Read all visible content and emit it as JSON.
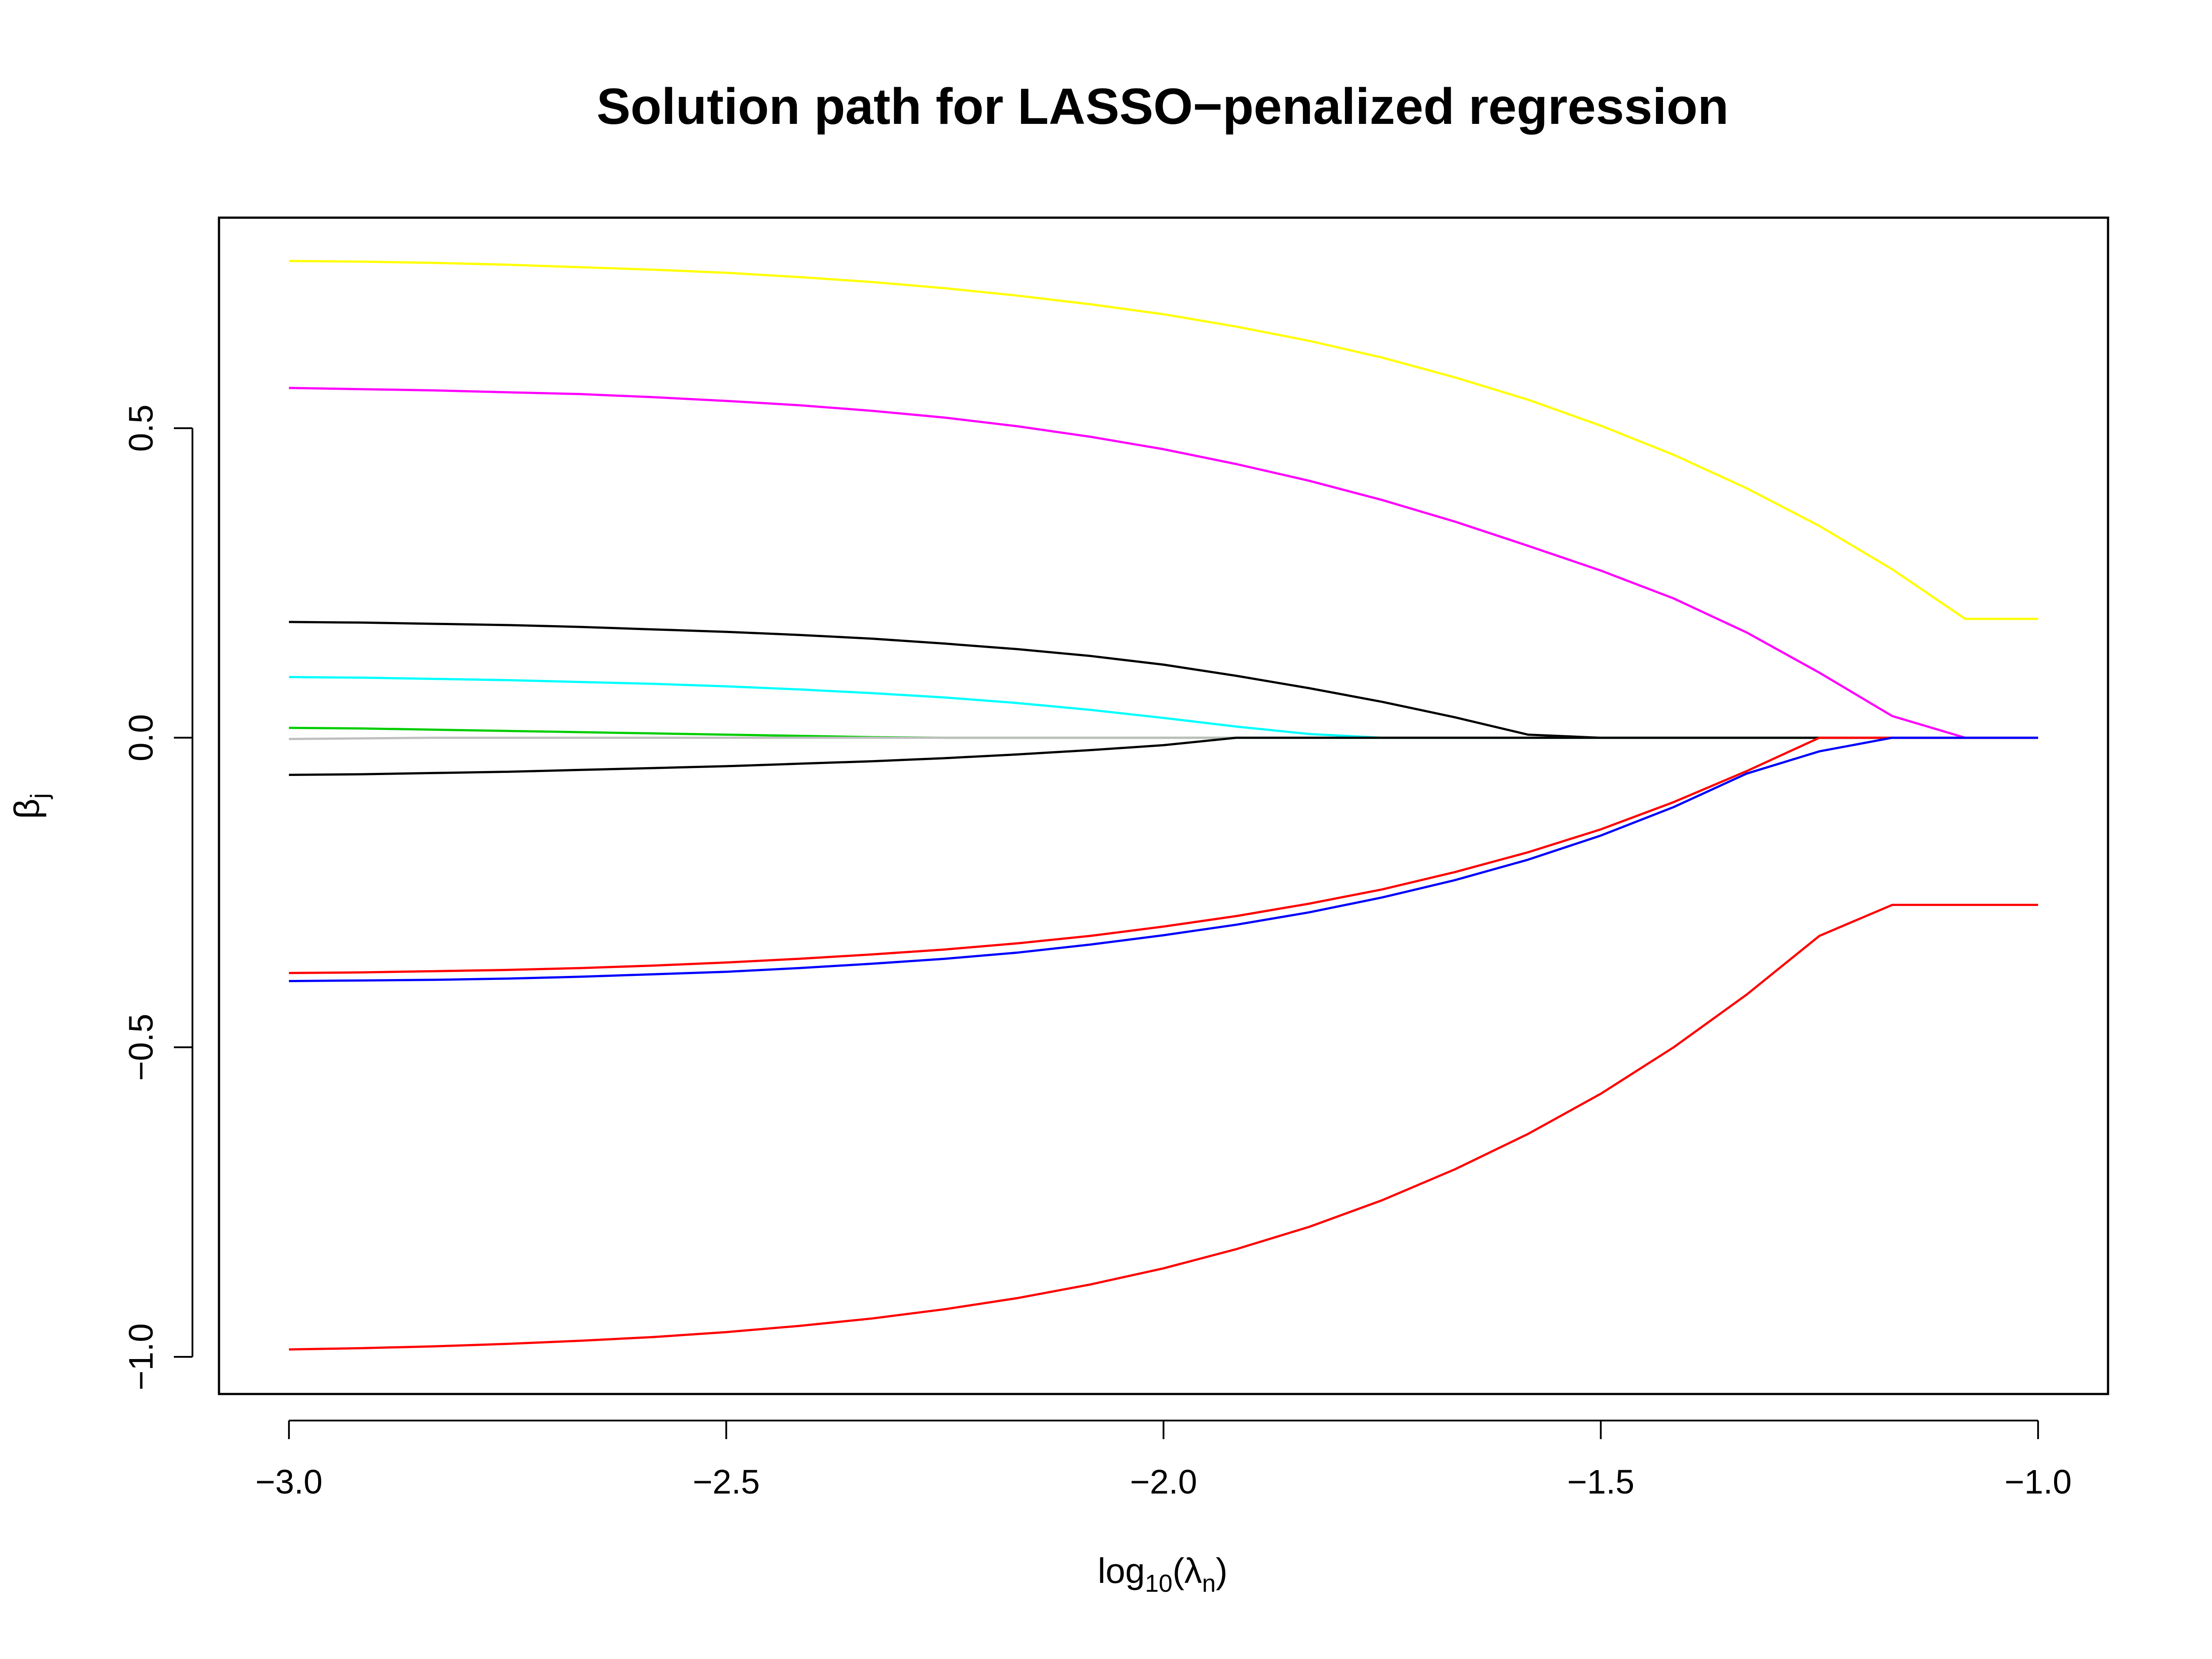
{
  "chart_data": {
    "type": "line",
    "title": "Solution path for LASSO−penalized regression",
    "xlabel": {
      "pre": "log",
      "sub": "10",
      "mid": "(λ",
      "sub2": "n",
      "post": ")"
    },
    "ylabel": {
      "main": "β",
      "sub": "j"
    },
    "xlim": [
      -3.08,
      -0.92
    ],
    "ylim": [
      -1.06,
      0.84
    ],
    "xticks": [
      -3.0,
      -2.5,
      -2.0,
      -1.5,
      -1.0
    ],
    "xtick_labels": [
      "−3.0",
      "−2.5",
      "−2.0",
      "−1.5",
      "−1.0"
    ],
    "yticks": [
      -1.0,
      -0.5,
      0.0,
      0.5
    ],
    "ytick_labels": [
      "−1.0",
      "−0.5",
      "0.0",
      "0.5"
    ],
    "grid": false,
    "legend": "none",
    "x": [
      -3.0,
      -2.9167,
      -2.8333,
      -2.75,
      -2.6667,
      -2.5833,
      -2.5,
      -2.4167,
      -2.3333,
      -2.25,
      -2.1667,
      -2.0833,
      -2.0,
      -1.9167,
      -1.8333,
      -1.75,
      -1.6667,
      -1.5833,
      -1.5,
      -1.4167,
      -1.3333,
      -1.25,
      -1.1667,
      -1.0833,
      -1.0
    ],
    "series": [
      {
        "color": "#FFFF00",
        "values": [
          0.77,
          0.769,
          0.767,
          0.764,
          0.76,
          0.756,
          0.751,
          0.744,
          0.736,
          0.726,
          0.714,
          0.7,
          0.684,
          0.664,
          0.641,
          0.614,
          0.582,
          0.546,
          0.504,
          0.457,
          0.403,
          0.342,
          0.272,
          0.192,
          0.192
        ]
      },
      {
        "color": "#FF00FF",
        "values": [
          0.565,
          0.563,
          0.561,
          0.558,
          0.555,
          0.55,
          0.544,
          0.537,
          0.528,
          0.517,
          0.503,
          0.486,
          0.466,
          0.442,
          0.415,
          0.384,
          0.349,
          0.31,
          0.27,
          0.225,
          0.17,
          0.105,
          0.035,
          0.0,
          0.0
        ]
      },
      {
        "color": "#000000",
        "values": [
          0.187,
          0.186,
          0.184,
          0.182,
          0.179,
          0.175,
          0.171,
          0.166,
          0.16,
          0.152,
          0.143,
          0.132,
          0.118,
          0.1,
          0.08,
          0.058,
          0.033,
          0.005,
          0.0,
          0.0,
          0.0,
          0.0,
          0.0,
          0.0,
          0.0
        ]
      },
      {
        "color": "#00FFFF",
        "values": [
          0.098,
          0.097,
          0.095,
          0.093,
          0.09,
          0.087,
          0.083,
          0.078,
          0.072,
          0.065,
          0.056,
          0.045,
          0.032,
          0.018,
          0.006,
          0.0,
          0.0,
          0.0,
          0.0,
          0.0,
          0.0,
          0.0,
          0.0,
          0.0,
          0.0
        ]
      },
      {
        "color": "#00CD00",
        "values": [
          0.016,
          0.015,
          0.013,
          0.011,
          0.009,
          0.007,
          0.005,
          0.003,
          0.001,
          0.0,
          0.0,
          0.0,
          0.0,
          0.0,
          0.0,
          0.0,
          0.0,
          0.0,
          0.0,
          0.0,
          0.0,
          0.0,
          0.0,
          0.0,
          0.0
        ]
      },
      {
        "color": "#BEBEBE",
        "values": [
          -0.002,
          -0.001,
          0.0,
          0.0,
          0.0,
          0.0,
          0.0,
          0.0,
          0.0,
          0.0,
          0.0,
          0.0,
          0.0,
          0.0,
          0.0,
          0.0,
          0.0,
          0.0,
          0.0,
          0.0,
          0.0,
          0.0,
          0.0,
          0.0,
          0.0
        ]
      },
      {
        "color": "#000000",
        "values": [
          -0.06,
          -0.059,
          -0.057,
          -0.055,
          -0.052,
          -0.049,
          -0.046,
          -0.042,
          -0.038,
          -0.033,
          -0.027,
          -0.02,
          -0.012,
          0.0,
          0.0,
          0.0,
          0.0,
          0.0,
          0.0,
          0.0,
          0.0,
          0.0,
          0.0,
          0.0,
          0.0
        ]
      },
      {
        "color": "#FF0000",
        "values": [
          -0.38,
          -0.379,
          -0.377,
          -0.375,
          -0.372,
          -0.368,
          -0.363,
          -0.357,
          -0.35,
          -0.342,
          -0.332,
          -0.32,
          -0.305,
          -0.288,
          -0.268,
          -0.245,
          -0.217,
          -0.185,
          -0.148,
          -0.104,
          -0.054,
          0.0,
          0.0,
          0.0,
          0.0
        ]
      },
      {
        "color": "#0000FF",
        "values": [
          -0.393,
          -0.392,
          -0.391,
          -0.389,
          -0.386,
          -0.382,
          -0.378,
          -0.372,
          -0.365,
          -0.357,
          -0.347,
          -0.334,
          -0.319,
          -0.302,
          -0.282,
          -0.258,
          -0.23,
          -0.197,
          -0.158,
          -0.112,
          -0.058,
          -0.022,
          0.0,
          0.0,
          0.0
        ]
      },
      {
        "color": "#FF0000",
        "values": [
          -0.988,
          -0.986,
          -0.983,
          -0.979,
          -0.974,
          -0.968,
          -0.96,
          -0.95,
          -0.938,
          -0.923,
          -0.905,
          -0.883,
          -0.857,
          -0.826,
          -0.79,
          -0.747,
          -0.697,
          -0.64,
          -0.575,
          -0.5,
          -0.415,
          -0.32,
          -0.27,
          -0.27,
          -0.27
        ]
      }
    ]
  }
}
